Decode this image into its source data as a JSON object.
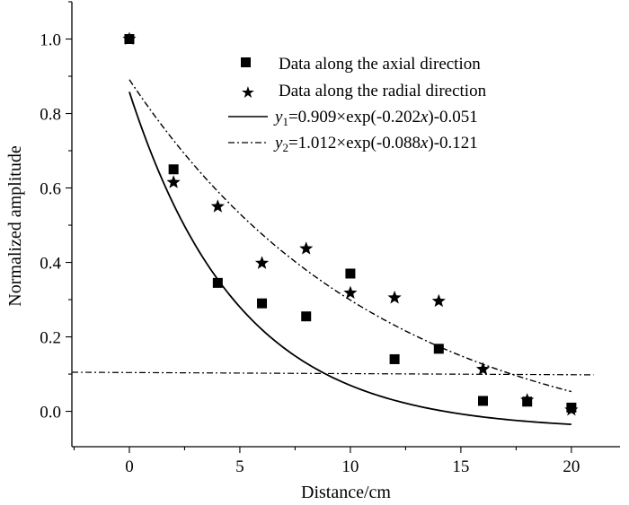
{
  "chart_data": {
    "type": "scatter",
    "xlabel": "Distance/cm",
    "ylabel": "Normalized amplitude",
    "xlim": [
      -2.6,
      22.2
    ],
    "ylim": [
      -0.095,
      1.1
    ],
    "x_ticks": [
      0,
      5,
      10,
      15,
      20
    ],
    "x_tick_labels": [
      "0",
      "5",
      "10",
      "15",
      "20"
    ],
    "y_ticks": [
      0.0,
      0.2,
      0.4,
      0.6,
      0.8,
      1.0
    ],
    "y_tick_labels": [
      "0.0",
      "0.2",
      "0.4",
      "0.6",
      "0.8",
      "1.0"
    ],
    "legend_position": "top-right",
    "series": [
      {
        "name": "Data along the axial direction",
        "marker": "square",
        "x": [
          0,
          2,
          4,
          6,
          8,
          10,
          12,
          14,
          16,
          18,
          20
        ],
        "y": [
          1.0,
          0.65,
          0.345,
          0.29,
          0.255,
          0.37,
          0.14,
          0.168,
          0.028,
          0.026,
          0.01
        ]
      },
      {
        "name": "Data along the radial direction",
        "marker": "star",
        "x": [
          0,
          2,
          4,
          6,
          8,
          10,
          12,
          14,
          16,
          18,
          20
        ],
        "y": [
          1.0,
          0.615,
          0.55,
          0.398,
          0.437,
          0.318,
          0.305,
          0.296,
          0.113,
          0.03,
          0.004
        ]
      }
    ],
    "fits": [
      {
        "label_var": "y",
        "label_sub": "1",
        "label_rest_1": "=0.909×exp(-0.202",
        "label_var2": "x",
        "label_rest_2": ")-0.051",
        "style": "solid",
        "a": 0.909,
        "b": 0.202,
        "c": -0.051,
        "x_range": [
          0,
          20
        ]
      },
      {
        "label_var": "y",
        "label_sub": "2",
        "label_rest_1": "=1.012×exp(-0.088",
        "label_var2": "x",
        "label_rest_2": ")-0.121",
        "style": "dashdot",
        "a": 1.012,
        "b": 0.088,
        "c": -0.121,
        "x_range": [
          0,
          20
        ]
      }
    ],
    "reference_line": {
      "style": "dashdot",
      "points": [
        [
          -2.6,
          0.105
        ],
        [
          21,
          0.098
        ]
      ]
    }
  }
}
